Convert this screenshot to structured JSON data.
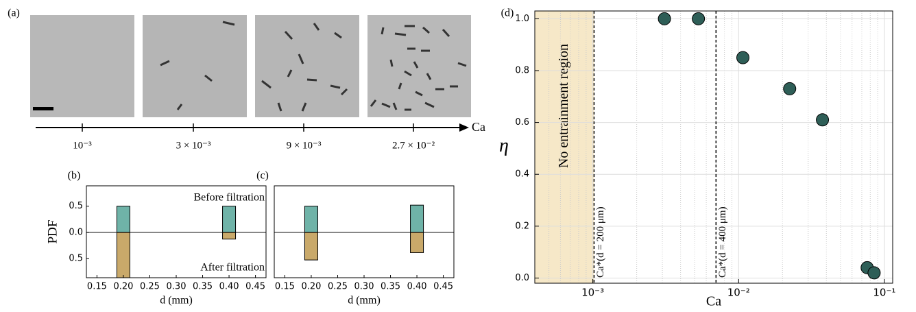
{
  "chart_data": [
    {
      "type": "axis",
      "label": "(a)",
      "categories": [
        "10⁻³",
        "3 × 10⁻³",
        "9 × 10⁻³",
        "2.7 × 10⁻²"
      ],
      "axis_label": "Ca"
    },
    {
      "type": "bar",
      "label": "(b)",
      "ylabel": "PDF",
      "xlabel": "d (mm)",
      "x": [
        0.2,
        0.4
      ],
      "series": [
        {
          "name": "Before filtration",
          "color": "#6fb3a8",
          "values": [
            0.5,
            0.5
          ]
        },
        {
          "name": "After filtration",
          "color": "#c9a96a",
          "values": [
            -0.87,
            -0.13
          ]
        }
      ],
      "xlim": [
        0.13,
        0.47
      ],
      "ylim": [
        -0.87,
        0.89
      ],
      "xticks": [
        0.15,
        {
          "value": 0.2,
          "label": "0.20"
        },
        0.25,
        {
          "value": 0.3,
          "label": "0.30"
        },
        0.35,
        {
          "value": 0.4,
          "label": "0.40"
        },
        0.45
      ],
      "yticks": [
        0.5,
        {
          "value": 0,
          "label": "0.0"
        },
        {
          "value": -0.5,
          "label": "0.5"
        }
      ]
    },
    {
      "type": "bar",
      "label": "(c)",
      "xlabel": "d (mm)",
      "x": [
        0.2,
        0.4
      ],
      "series": [
        {
          "color": "#6fb3a8",
          "values": [
            0.5,
            0.52
          ]
        },
        {
          "color": "#c9a96a",
          "values": [
            -0.53,
            -0.39
          ]
        }
      ],
      "xlim": [
        0.13,
        0.47
      ],
      "ylim": [
        -0.87,
        0.89
      ],
      "xticks": [
        0.15,
        {
          "value": 0.2,
          "label": "0.20"
        },
        0.25,
        {
          "value": 0.3,
          "label": "0.30"
        },
        0.35,
        {
          "value": 0.4,
          "label": "0.40"
        },
        0.45
      ]
    },
    {
      "type": "scatter",
      "label": "(d)",
      "xlabel": "Ca",
      "ylabel": "η",
      "log_x": true,
      "grid": true,
      "color": "#2e5e57",
      "x": [
        0.0031,
        0.0053,
        0.0107,
        0.0224,
        0.0376,
        0.0762,
        0.085
      ],
      "values": [
        1.0,
        1.0,
        0.85,
        0.73,
        0.61,
        0.04,
        0.02
      ],
      "xlim": [
        0.0004,
        0.114
      ],
      "ylim": [
        -0.02,
        1.03
      ],
      "xticks": [
        {
          "value": 0.001,
          "label": "10⁻³"
        },
        {
          "value": 0.01,
          "label": "10⁻²"
        },
        {
          "value": 0.1,
          "label": "10⁻¹"
        }
      ],
      "yticks": [
        {
          "value": 0,
          "label": "0.0"
        },
        0.2,
        0.4,
        0.6,
        0.8,
        {
          "value": 1,
          "label": "1.0"
        }
      ],
      "regions": [
        {
          "xmax": 0.00102,
          "label": "No entrainment region",
          "color": "#f6e8c8"
        }
      ],
      "vlines": [
        {
          "x": 0.00102,
          "label": "Ca*(d = 200 μm)"
        },
        {
          "x": 0.007,
          "label": "Ca*(d = 400 μm)"
        }
      ]
    }
  ]
}
